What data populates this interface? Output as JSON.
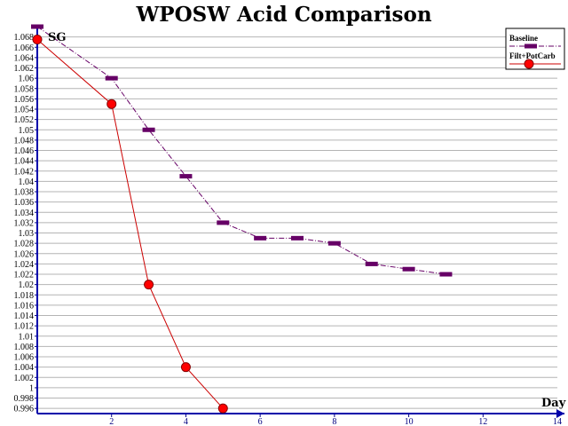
{
  "chart_data": {
    "type": "line",
    "title": "WPOSW Acid Comparison",
    "xlabel": "Day",
    "ylabel": "SG",
    "xlim": [
      0,
      14
    ],
    "ylim": [
      0.995,
      1.07
    ],
    "x_ticks": [
      2,
      4,
      6,
      8,
      10,
      12,
      14
    ],
    "x_tick_labels": [
      "2",
      "4",
      "6",
      "8",
      "10",
      "12",
      "14"
    ],
    "y_ticks": [
      0.996,
      0.998,
      1.0,
      1.002,
      1.004,
      1.006,
      1.008,
      1.01,
      1.012,
      1.014,
      1.016,
      1.018,
      1.02,
      1.022,
      1.024,
      1.026,
      1.028,
      1.03,
      1.032,
      1.034,
      1.036,
      1.038,
      1.04,
      1.042,
      1.044,
      1.046,
      1.048,
      1.05,
      1.052,
      1.054,
      1.056,
      1.058,
      1.06,
      1.062,
      1.064,
      1.066,
      1.068
    ],
    "y_tick_labels": [
      "0.996",
      "0.998",
      "1",
      "1.002",
      "1.004",
      "1.006",
      "1.008",
      "1.01",
      "1.012",
      "1.014",
      "1.016",
      "1.018",
      "1.02",
      "1.022",
      "1.024",
      "1.026",
      "1.028",
      "1.03",
      "1.032",
      "1.034",
      "1.036",
      "1.038",
      "1.04",
      "1.042",
      "1.044",
      "1.046",
      "1.048",
      "1.05",
      "1.052",
      "1.054",
      "1.056",
      "1.058",
      "1.06",
      "1.062",
      "1.064",
      "1.066",
      "1.068"
    ],
    "grid": true,
    "legend_position": "top-right",
    "series": [
      {
        "name": "Baseline",
        "color": "#660066",
        "marker": "dash",
        "line_style": "dash-dot",
        "x": [
          0,
          2,
          3,
          4,
          5,
          6,
          7,
          8,
          9,
          10,
          11
        ],
        "y": [
          1.07,
          1.06,
          1.05,
          1.041,
          1.032,
          1.029,
          1.029,
          1.028,
          1.024,
          1.023,
          1.022
        ]
      },
      {
        "name": "Filt+PotCarb",
        "color": "#cc0000",
        "marker": "circle",
        "line_style": "solid",
        "x": [
          0,
          2,
          3,
          4,
          5
        ],
        "y": [
          1.0675,
          1.055,
          1.02,
          1.004,
          0.996
        ]
      }
    ]
  }
}
